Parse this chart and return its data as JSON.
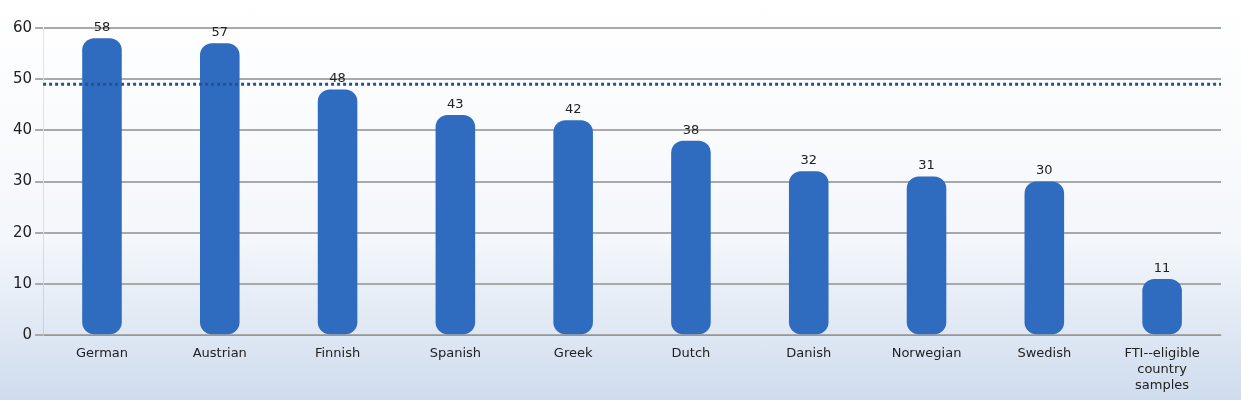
{
  "chart_data": {
    "type": "bar",
    "categories": [
      "German",
      "Austrian",
      "Finnish",
      "Spanish",
      "Greek",
      "Dutch",
      "Danish",
      "Norwegian",
      "Swedish",
      "FTI--eligible country samples"
    ],
    "values": [
      58,
      57,
      48,
      43,
      42,
      38,
      32,
      31,
      30,
      11
    ],
    "color": "#2f6cc0",
    "ylim": [
      0,
      60
    ],
    "yticks": [
      0,
      10,
      20,
      30,
      40,
      50,
      60
    ],
    "grid": "y",
    "data_labels": true,
    "ref_lines": [
      {
        "axis": "y",
        "value": 49,
        "color": "#2b4f8e",
        "line_style": "dotted"
      }
    ]
  }
}
